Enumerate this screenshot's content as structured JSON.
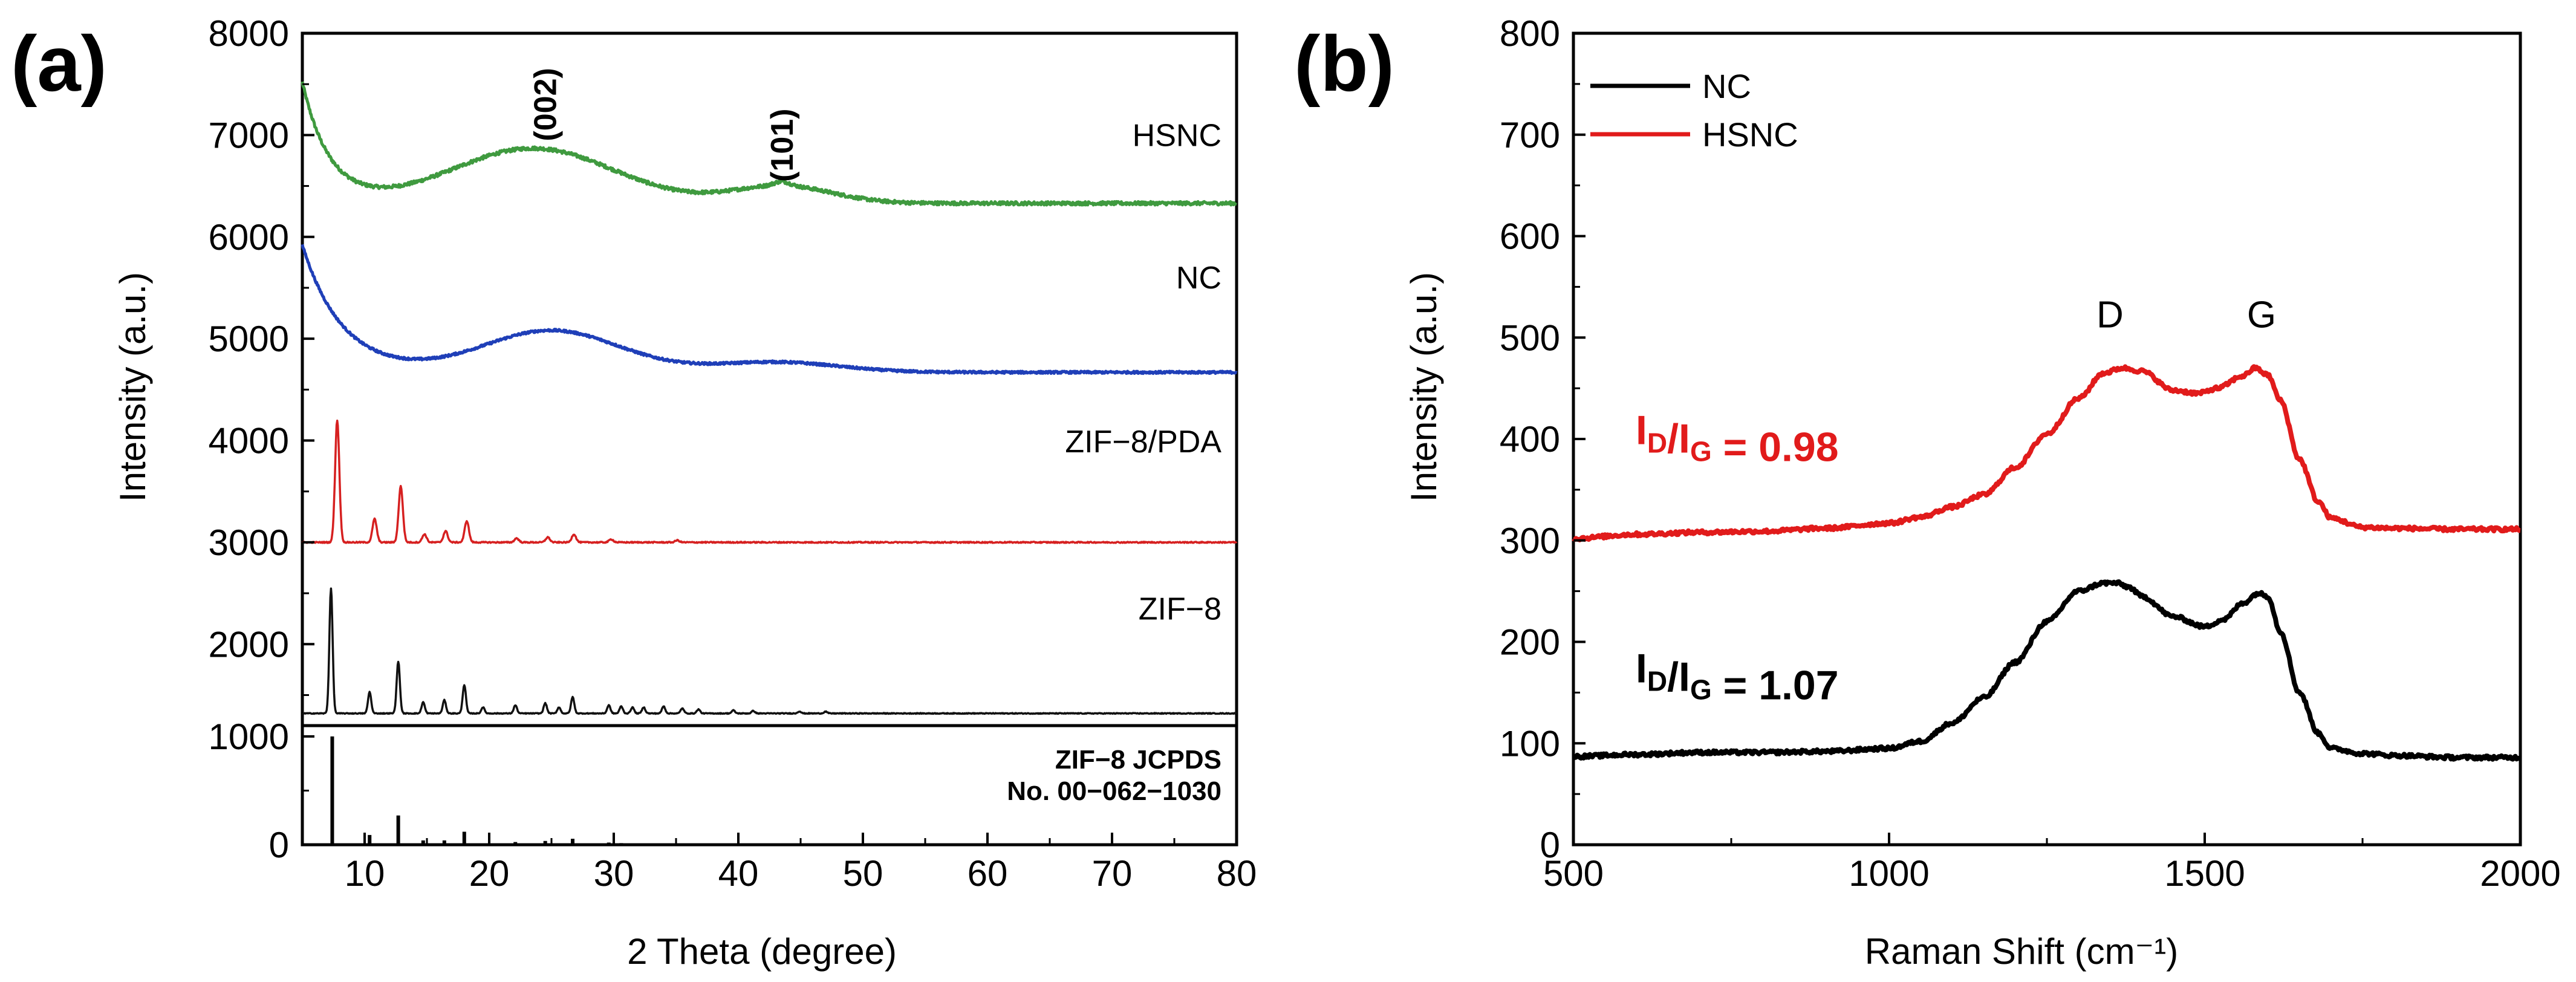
{
  "chart_data": [
    {
      "panel": "(a)",
      "type": "line",
      "title": "",
      "xlabel": "2 Theta (degree)",
      "ylabel": "Intensity (a.u.)",
      "xlim": [
        5,
        80
      ],
      "ylim_upper": [
        1200,
        8000
      ],
      "ylim_lower": [
        0,
        1100
      ],
      "xticks": [
        "10",
        "20",
        "30",
        "40",
        "50",
        "60",
        "70",
        "80"
      ],
      "yticks_upper": [
        "2000",
        "3000",
        "4000",
        "5000",
        "6000",
        "7000",
        "8000"
      ],
      "yticks_lower": [
        "0",
        "1000"
      ],
      "series": [
        {
          "name": "HSNC",
          "color": "#3f9a3f",
          "baseline": 6330,
          "features": "exponential rise below 10°, broad hump at ~23.5° (~6870), weak peak at ~43.5° (~6520)"
        },
        {
          "name": "NC",
          "color": "#1f3fb8",
          "baseline": 4670,
          "features": "exponential rise below 10°, broad hump at ~25° (~5070), weak hump at ~43° (~4760)"
        },
        {
          "name": "ZIF−8/PDA",
          "color": "#d62020",
          "baseline": 3000,
          "peaks": [
            [
              7.8,
              4200
            ],
            [
              10.8,
              3230
            ],
            [
              12.9,
              3550
            ],
            [
              14.8,
              3080
            ],
            [
              16.5,
              3110
            ],
            [
              18.2,
              3210
            ],
            [
              22.2,
              3040
            ],
            [
              24.7,
              3050
            ],
            [
              26.8,
              3080
            ],
            [
              29.8,
              3030
            ],
            [
              35.1,
              3020
            ]
          ]
        },
        {
          "name": "ZIF−8",
          "color": "#111111",
          "baseline": 1320,
          "peaks": [
            [
              7.3,
              2550
            ],
            [
              10.4,
              1530
            ],
            [
              12.7,
              1830
            ],
            [
              14.7,
              1430
            ],
            [
              16.4,
              1450
            ],
            [
              18.0,
              1600
            ],
            [
              19.5,
              1380
            ],
            [
              22.1,
              1400
            ],
            [
              24.5,
              1420
            ],
            [
              25.6,
              1380
            ],
            [
              26.7,
              1480
            ],
            [
              29.6,
              1400
            ],
            [
              30.6,
              1390
            ],
            [
              31.5,
              1380
            ],
            [
              32.4,
              1380
            ],
            [
              34.0,
              1390
            ],
            [
              35.5,
              1370
            ],
            [
              36.8,
              1360
            ],
            [
              39.6,
              1350
            ],
            [
              41.2,
              1345
            ],
            [
              44.9,
              1340
            ],
            [
              47.0,
              1338
            ]
          ]
        }
      ],
      "reference": {
        "name": "ZIF−8 JCPDS",
        "number": "No. 00−062−1030",
        "sticks": [
          [
            7.4,
            1000
          ],
          [
            10.4,
            90
          ],
          [
            12.7,
            270
          ],
          [
            14.7,
            40
          ],
          [
            16.4,
            40
          ],
          [
            18.0,
            120
          ],
          [
            22.1,
            25
          ],
          [
            24.5,
            35
          ],
          [
            26.7,
            55
          ],
          [
            29.6,
            20
          ],
          [
            30.6,
            15
          ],
          [
            32.4,
            12
          ],
          [
            34.0,
            10
          ]
        ]
      },
      "hkl_labels": [
        {
          "text": "(002)",
          "x": 24.5
        },
        {
          "text": "(101)",
          "x": 43.5
        }
      ],
      "trace_labels": [
        {
          "text": "HSNC",
          "series": "HSNC"
        },
        {
          "text": "NC",
          "series": "NC"
        },
        {
          "text": "ZIF−8/PDA",
          "series": "ZIF−8/PDA"
        },
        {
          "text": "ZIF−8",
          "series": "ZIF−8"
        }
      ]
    },
    {
      "panel": "(b)",
      "type": "line",
      "title": "",
      "xlabel": "Raman Shift (cm⁻¹)",
      "ylabel": "Intensity (a.u.)",
      "xlim": [
        500,
        2000
      ],
      "ylim": [
        0,
        800
      ],
      "xticks": [
        "500",
        "1000",
        "1500",
        "2000"
      ],
      "yticks": [
        "0",
        "100",
        "200",
        "300",
        "400",
        "500",
        "600",
        "700",
        "800"
      ],
      "legend": {
        "position": "top-left",
        "entries": [
          {
            "name": "NC",
            "color": "#000000"
          },
          {
            "name": "HSNC",
            "color": "#e11b1b"
          }
        ]
      },
      "series": [
        {
          "name": "NC",
          "color": "#000000",
          "points": [
            [
              500,
              87
            ],
            [
              600,
              89
            ],
            [
              700,
              91
            ],
            [
              800,
              91
            ],
            [
              900,
              92
            ],
            [
              1000,
              95
            ],
            [
              1050,
              102
            ],
            [
              1100,
              120
            ],
            [
              1150,
              145
            ],
            [
              1200,
              180
            ],
            [
              1250,
              220
            ],
            [
              1300,
              250
            ],
            [
              1340,
              258
            ],
            [
              1360,
              258
            ],
            [
              1380,
              254
            ],
            [
              1400,
              245
            ],
            [
              1450,
              225
            ],
            [
              1500,
              215
            ],
            [
              1530,
              222
            ],
            [
              1560,
              238
            ],
            [
              1585,
              248
            ],
            [
              1600,
              245
            ],
            [
              1620,
              210
            ],
            [
              1650,
              150
            ],
            [
              1680,
              110
            ],
            [
              1700,
              95
            ],
            [
              1750,
              90
            ],
            [
              1800,
              88
            ],
            [
              1900,
              86
            ],
            [
              2000,
              86
            ]
          ]
        },
        {
          "name": "HSNC",
          "color": "#e11b1b",
          "points": [
            [
              500,
              302
            ],
            [
              600,
              306
            ],
            [
              700,
              308
            ],
            [
              800,
              309
            ],
            [
              900,
              312
            ],
            [
              1000,
              317
            ],
            [
              1050,
              323
            ],
            [
              1100,
              333
            ],
            [
              1150,
              345
            ],
            [
              1200,
              372
            ],
            [
              1250,
              405
            ],
            [
              1300,
              440
            ],
            [
              1340,
              465
            ],
            [
              1370,
              470
            ],
            [
              1400,
              467
            ],
            [
              1450,
              448
            ],
            [
              1490,
              445
            ],
            [
              1520,
              450
            ],
            [
              1560,
              462
            ],
            [
              1580,
              470
            ],
            [
              1600,
              463
            ],
            [
              1620,
              438
            ],
            [
              1650,
              380
            ],
            [
              1680,
              338
            ],
            [
              1700,
              322
            ],
            [
              1750,
              313
            ],
            [
              1800,
              312
            ],
            [
              1900,
              311
            ],
            [
              2000,
              311
            ]
          ]
        }
      ],
      "peak_labels": [
        {
          "text": "D",
          "x": 1350
        },
        {
          "text": "G",
          "x": 1590
        }
      ],
      "ratios": [
        {
          "series": "HSNC",
          "main": "I",
          "sub1": "D",
          "mid": "/I",
          "sub2": "G",
          "value": " = 0.98",
          "color": "#e11b1b"
        },
        {
          "series": "NC",
          "main": "I",
          "sub1": "D",
          "mid": "/I",
          "sub2": "G",
          "value": " = 1.07",
          "color": "#000000"
        }
      ]
    }
  ]
}
